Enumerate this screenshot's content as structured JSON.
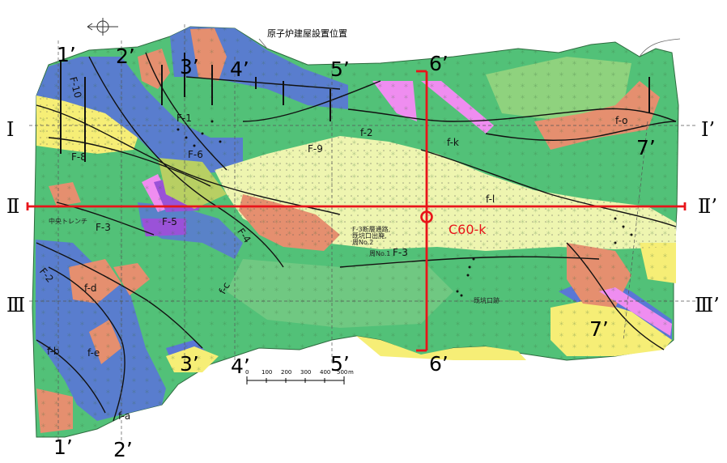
{
  "map": {
    "title": "原子炉建屋設置位置",
    "point_label": "C60-k",
    "scale_ticks": [
      "0",
      "100",
      "200",
      "300",
      "400",
      "500",
      "m"
    ],
    "section_labels": {
      "top": [
        "1’",
        "2’",
        "3’",
        "4’",
        "5’",
        "6’"
      ],
      "bottom": [
        "1’",
        "2’",
        "3’",
        "4’",
        "5’",
        "6’"
      ],
      "seven_a": "7’",
      "seven_b": "7’"
    },
    "roman_left": [
      "Ⅰ",
      "Ⅱ",
      "Ⅲ"
    ],
    "roman_right": [
      "Ⅰ’",
      "Ⅱ’",
      "Ⅲ’"
    ],
    "fault_labels": [
      "F-10",
      "F-8",
      "F-9",
      "F-3",
      "F-4",
      "F-5",
      "F-6",
      "F-1",
      "F-2",
      "f-a",
      "f-b",
      "f-c",
      "f-d",
      "f-e",
      "f-k",
      "f-o",
      "f-l",
      "f-2",
      "F-3",
      "F-3断層通路,\n既坑口出廃,\n周No.2",
      "周No.1",
      "中央トレンチ",
      "既坑口跡"
    ],
    "colors": {
      "green": "#52c178",
      "light_green": "#8fd27e",
      "blue": "#5a77d6",
      "salmon": "#e58f6f",
      "yellow": "#f6ee76",
      "pale_yellow": "#eef5b0",
      "pink": "#ef8df0",
      "purple": "#9a52d8",
      "olive": "#b8cf63",
      "red": "#e8141a"
    }
  }
}
